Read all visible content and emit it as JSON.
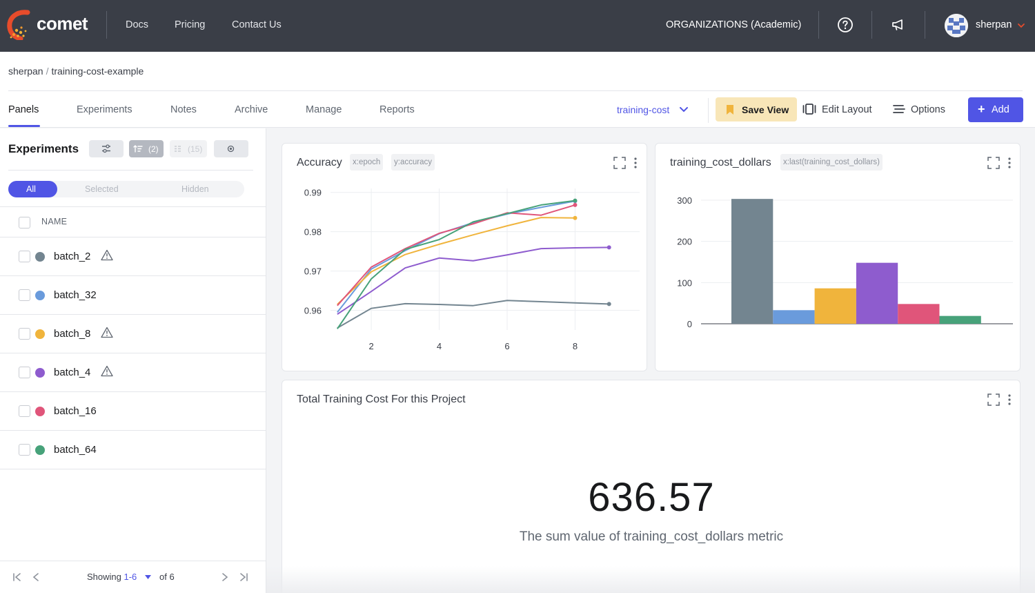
{
  "topnav": {
    "brand": "comet",
    "links": [
      "Docs",
      "Pricing",
      "Contact Us"
    ],
    "org_label": "ORGANIZATIONS (Academic)",
    "user": "sherpan"
  },
  "breadcrumb": {
    "owner": "sherpan",
    "separator": "/",
    "project": "training-cost-example"
  },
  "tabs": [
    "Panels",
    "Experiments",
    "Notes",
    "Archive",
    "Manage",
    "Reports"
  ],
  "toolbar": {
    "view_name": "training-cost",
    "save_view": "Save View",
    "edit_layout": "Edit Layout",
    "options": "Options",
    "add": "Add"
  },
  "sidebar": {
    "title": "Experiments",
    "sort_count": "(2)",
    "group_count": "(15)",
    "segments": [
      "All",
      "Selected",
      "Hidden"
    ],
    "column_header": "NAME",
    "experiments": [
      {
        "name": "batch_2",
        "color": "#738590",
        "warning": true
      },
      {
        "name": "batch_32",
        "color": "#6a9bdc",
        "warning": false
      },
      {
        "name": "batch_8",
        "color": "#f0b43c",
        "warning": true
      },
      {
        "name": "batch_4",
        "color": "#8e5cce",
        "warning": true
      },
      {
        "name": "batch_16",
        "color": "#e0557a",
        "warning": false
      },
      {
        "name": "batch_64",
        "color": "#47a27a",
        "warning": false
      }
    ],
    "pager": {
      "showing": "Showing",
      "range": "1-6",
      "of": "of 6"
    }
  },
  "panels": {
    "accuracy": {
      "title": "Accuracy",
      "x_chip": "x:epoch",
      "y_chip": "y:accuracy"
    },
    "cost": {
      "title": "training_cost_dollars",
      "x_chip": "x:last(training_cost_dollars)"
    },
    "total": {
      "title": "Total Training Cost For this Project",
      "value": "636.57",
      "description": "The sum value of training_cost_dollars metric"
    }
  },
  "chart_data": [
    {
      "type": "line",
      "title": "Accuracy",
      "xlabel": "epoch",
      "ylabel": "accuracy",
      "xlim": [
        0.8,
        9.9
      ],
      "ylim": [
        0.955,
        0.991
      ],
      "xticks": [
        2,
        4,
        6,
        8
      ],
      "yticks": [
        0.96,
        0.97,
        0.98,
        0.99
      ],
      "grid": true,
      "series": [
        {
          "name": "batch_2",
          "color": "#738590",
          "x": [
            1,
            2,
            3,
            4,
            5,
            6,
            7,
            8,
            9
          ],
          "y": [
            0.9555,
            0.9605,
            0.9617,
            0.9615,
            0.9612,
            0.9625,
            0.9622,
            0.9619,
            0.9616
          ]
        },
        {
          "name": "batch_32",
          "color": "#6a9bdc",
          "x": [
            1,
            2,
            3,
            4,
            5,
            6,
            7,
            8
          ],
          "y": [
            0.9595,
            0.9705,
            0.9752,
            0.9795,
            0.9823,
            0.9845,
            0.9862,
            0.9878
          ]
        },
        {
          "name": "batch_8",
          "color": "#f0b43c",
          "x": [
            1,
            2,
            3,
            4,
            5,
            6,
            7,
            8
          ],
          "y": [
            0.9615,
            0.9698,
            0.9742,
            0.9768,
            0.9792,
            0.9815,
            0.9836,
            0.9835
          ]
        },
        {
          "name": "batch_4",
          "color": "#8e5cce",
          "x": [
            1,
            2,
            3,
            4,
            5,
            6,
            7,
            8,
            9
          ],
          "y": [
            0.959,
            0.9648,
            0.9708,
            0.9733,
            0.9726,
            0.9741,
            0.9757,
            0.9759,
            0.976
          ]
        },
        {
          "name": "batch_16",
          "color": "#e0557a",
          "x": [
            1,
            2,
            3,
            4,
            5,
            6,
            7,
            8
          ],
          "y": [
            0.9612,
            0.971,
            0.9757,
            0.9796,
            0.982,
            0.9848,
            0.9842,
            0.9868
          ]
        },
        {
          "name": "batch_64",
          "color": "#47a27a",
          "x": [
            1,
            2,
            3,
            4,
            5,
            6,
            7,
            8
          ],
          "y": [
            0.9553,
            0.968,
            0.9755,
            0.978,
            0.9825,
            0.9846,
            0.9868,
            0.9879
          ]
        }
      ]
    },
    {
      "type": "bar",
      "title": "training_cost_dollars",
      "xlabel": "last(training_cost_dollars)",
      "ylim": [
        0,
        320
      ],
      "yticks": [
        0,
        100,
        200,
        300
      ],
      "grid": true,
      "categories": [
        "batch_2",
        "batch_32",
        "batch_8",
        "batch_4",
        "batch_16",
        "batch_64"
      ],
      "values": [
        303,
        33,
        86,
        148,
        48,
        19
      ],
      "colors": [
        "#738590",
        "#6a9bdc",
        "#f0b43c",
        "#8e5cce",
        "#e0557a",
        "#47a27a"
      ]
    }
  ]
}
